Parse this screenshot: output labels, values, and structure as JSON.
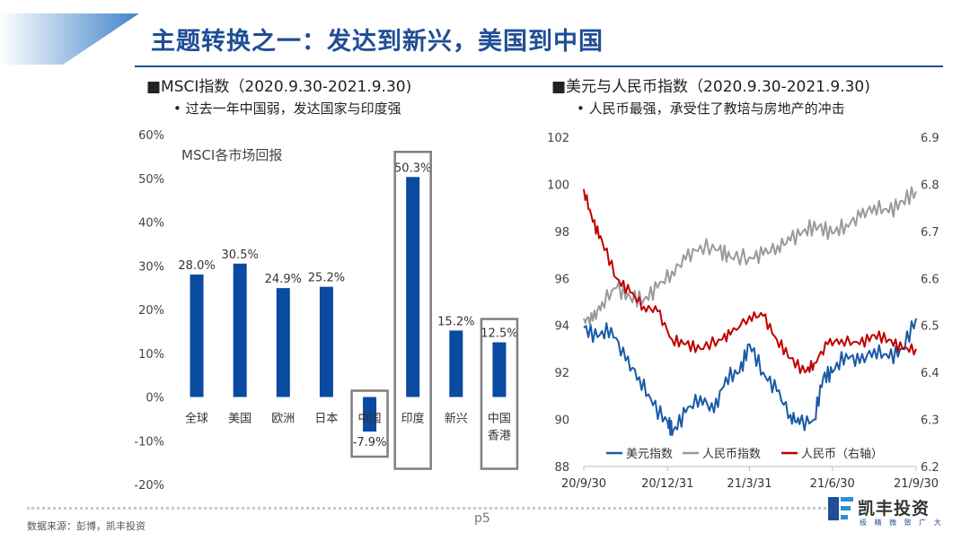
{
  "header": {
    "title": "主题转换之一：发达到新兴，美国到中国"
  },
  "left_panel": {
    "title": "■MSCI指数（2020.9.30-2021.9.30)",
    "subtitle": "• 过去一年中国弱，发达国家与印度强"
  },
  "right_panel": {
    "title": "■美元与人民币指数（2020.9.30-2021.9.30)",
    "subtitle": "• 人民币最强，承受住了教培与房地产的冲击"
  },
  "footer": {
    "source": "数据来源：彭博，凯丰投资",
    "page": "p5",
    "logo_text": "凯丰投资",
    "logo_sub": "极 精 微 致 广 大"
  },
  "colors": {
    "accent": "#1f4e96",
    "bar": "#0a4aa0",
    "usd": "#1a5aa6",
    "cny_index": "#9a9a9a",
    "cny": "#c00000",
    "highlight_box": "#7f7f7f"
  },
  "chart_data": [
    {
      "type": "bar",
      "inner_title": "MSCI各市场回报",
      "categories": [
        "全球",
        "美国",
        "欧洲",
        "日本",
        "中国",
        "印度",
        "新兴",
        "中国\n香港"
      ],
      "values": [
        28.0,
        30.5,
        24.9,
        25.2,
        -7.9,
        50.3,
        15.2,
        12.5
      ],
      "value_labels": [
        "28.0%",
        "30.5%",
        "24.9%",
        "25.2%",
        "-7.9%",
        "50.3%",
        "15.2%",
        "12.5%"
      ],
      "highlighted": [
        "中国",
        "印度",
        "中国\n香港"
      ],
      "ylim": [
        -20,
        60
      ],
      "yticks": [
        "-20%",
        "-10%",
        "0%",
        "10%",
        "20%",
        "30%",
        "40%",
        "50%",
        "60%"
      ],
      "ytick_values": [
        -20,
        -10,
        0,
        10,
        20,
        30,
        40,
        50,
        60
      ],
      "grid": false
    },
    {
      "type": "line",
      "xticks": [
        "20/9/30",
        "20/12/31",
        "21/3/31",
        "21/6/30",
        "21/9/30"
      ],
      "x_range": [
        "2020-09-30",
        "2021-09-30"
      ],
      "ylim_left": [
        88,
        102
      ],
      "yticks_left": [
        88,
        90,
        92,
        94,
        96,
        98,
        100,
        102
      ],
      "ylim_right": [
        6.2,
        6.9
      ],
      "yticks_right": [
        "6.2",
        "6.3",
        "6.4",
        "6.5",
        "6.6",
        "6.7",
        "6.8",
        "6.9"
      ],
      "legend_position": "bottom",
      "grid": false,
      "series": [
        {
          "name": "美元指数",
          "axis": "left",
          "x": [
            "2020-09-30",
            "2020-10-15",
            "2020-10-30",
            "2020-11-15",
            "2020-11-30",
            "2020-12-15",
            "2020-12-31",
            "2021-01-06",
            "2021-01-20",
            "2021-02-05",
            "2021-02-20",
            "2021-03-05",
            "2021-03-20",
            "2021-03-31",
            "2021-04-15",
            "2021-04-30",
            "2021-05-15",
            "2021-05-25",
            "2021-06-10",
            "2021-06-20",
            "2021-06-30",
            "2021-07-15",
            "2021-07-30",
            "2021-08-15",
            "2021-08-31",
            "2021-09-15",
            "2021-09-30"
          ],
          "values": [
            93.9,
            93.5,
            93.9,
            92.5,
            91.8,
            90.6,
            89.9,
            89.5,
            90.3,
            91.0,
            90.3,
            91.8,
            92.0,
            93.2,
            92.0,
            91.2,
            90.2,
            89.8,
            90.0,
            91.8,
            92.0,
            92.8,
            92.4,
            93.0,
            92.6,
            93.0,
            94.3
          ]
        },
        {
          "name": "人民币指数",
          "axis": "left",
          "x": [
            "2020-09-30",
            "2020-10-10",
            "2020-10-20",
            "2020-11-05",
            "2020-11-20",
            "2020-12-05",
            "2020-12-20",
            "2021-01-05",
            "2021-01-20",
            "2021-02-05",
            "2021-02-25",
            "2021-03-10",
            "2021-03-31",
            "2021-04-15",
            "2021-05-01",
            "2021-05-15",
            "2021-05-31",
            "2021-06-15",
            "2021-06-30",
            "2021-07-15",
            "2021-07-31",
            "2021-08-15",
            "2021-08-31",
            "2021-09-15",
            "2021-09-30"
          ],
          "values": [
            94.3,
            94.2,
            95.0,
            95.6,
            95.2,
            95.1,
            95.6,
            96.3,
            96.8,
            97.4,
            97.2,
            96.9,
            96.9,
            97.0,
            97.4,
            97.6,
            98.1,
            98.2,
            97.9,
            98.3,
            98.6,
            99.1,
            98.8,
            99.3,
            99.7
          ]
        },
        {
          "name": "人民币（右轴）",
          "axis": "right",
          "x": [
            "2020-09-30",
            "2020-10-10",
            "2020-10-20",
            "2020-11-05",
            "2020-11-20",
            "2020-12-05",
            "2020-12-20",
            "2021-01-05",
            "2021-01-20",
            "2021-02-05",
            "2021-02-25",
            "2021-03-10",
            "2021-03-31",
            "2021-04-15",
            "2021-04-30",
            "2021-05-15",
            "2021-05-31",
            "2021-06-10",
            "2021-06-25",
            "2021-07-10",
            "2021-07-30",
            "2021-08-15",
            "2021-08-31",
            "2021-09-15",
            "2021-09-30"
          ],
          "values": [
            6.79,
            6.72,
            6.68,
            6.6,
            6.57,
            6.54,
            6.53,
            6.47,
            6.46,
            6.45,
            6.47,
            6.48,
            6.52,
            6.52,
            6.47,
            6.43,
            6.4,
            6.42,
            6.46,
            6.47,
            6.46,
            6.48,
            6.47,
            6.45,
            6.45
          ]
        }
      ]
    }
  ]
}
